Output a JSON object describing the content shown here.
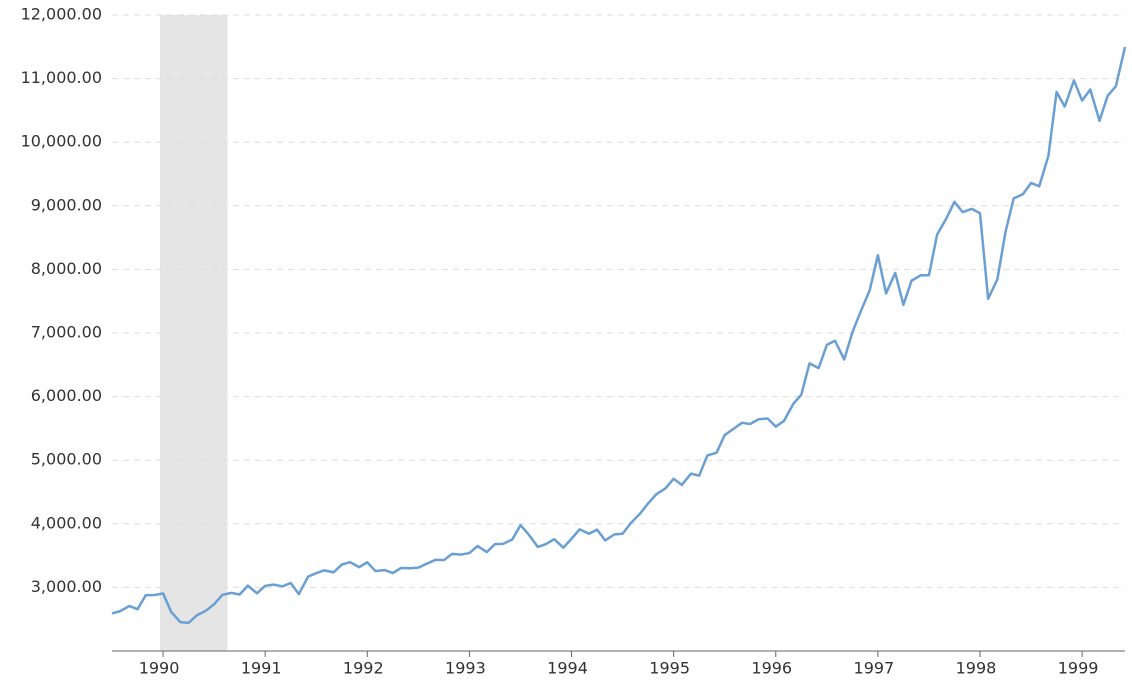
{
  "chart_data": {
    "type": "line",
    "x": [
      1989.5,
      1989.58,
      1989.67,
      1989.75,
      1989.83,
      1989.92,
      1990,
      1990.08,
      1990.17,
      1990.25,
      1990.33,
      1990.42,
      1990.5,
      1990.58,
      1990.67,
      1990.75,
      1990.83,
      1990.92,
      1991,
      1991.08,
      1991.17,
      1991.25,
      1991.33,
      1991.42,
      1991.5,
      1991.58,
      1991.67,
      1991.75,
      1991.83,
      1991.92,
      1992,
      1992.08,
      1992.17,
      1992.25,
      1992.33,
      1992.42,
      1992.5,
      1992.58,
      1992.67,
      1992.75,
      1992.83,
      1992.92,
      1993,
      1993.08,
      1993.17,
      1993.25,
      1993.33,
      1993.42,
      1993.5,
      1993.58,
      1993.67,
      1993.75,
      1993.83,
      1993.92,
      1994,
      1994.08,
      1994.17,
      1994.25,
      1994.33,
      1994.42,
      1994.5,
      1994.58,
      1994.67,
      1994.75,
      1994.83,
      1994.92,
      1995,
      1995.08,
      1995.17,
      1995.25,
      1995.33,
      1995.42,
      1995.5,
      1995.58,
      1995.67,
      1995.75,
      1995.83,
      1995.92,
      1996,
      1996.08,
      1996.17,
      1996.25,
      1996.33,
      1996.42,
      1996.5,
      1996.58,
      1996.67,
      1996.75,
      1996.83,
      1996.92,
      1997,
      1997.08,
      1997.17,
      1997.25,
      1997.33,
      1997.42,
      1997.5,
      1997.58,
      1997.67,
      1997.75,
      1997.83,
      1997.92,
      1998,
      1998.08,
      1998.17,
      1998.25,
      1998.33,
      1998.42,
      1998.5,
      1998.58,
      1998.67,
      1998.75,
      1998.83,
      1998.92,
      1999,
      1999.08,
      1999.17,
      1999.25,
      1999.33,
      1999.42
    ],
    "series": [
      {
        "color": "#6a9fd4",
        "values": [
          2590,
          2627,
          2707,
          2657,
          2877,
          2881,
          2905,
          2614,
          2453,
          2442,
          2560,
          2634,
          2736,
          2882,
          2914,
          2888,
          3028,
          2907,
          3025,
          3044,
          3017,
          3069,
          2895,
          3169,
          3224,
          3268,
          3236,
          3359,
          3397,
          3319,
          3394,
          3257,
          3272,
          3226,
          3305,
          3301,
          3310,
          3371,
          3435,
          3428,
          3527,
          3516,
          3540,
          3651,
          3555,
          3681,
          3684,
          3754,
          3978,
          3832,
          3636,
          3682,
          3758,
          3625,
          3765,
          3913,
          3843,
          3908,
          3739,
          3834,
          3844,
          4011,
          4158,
          4321,
          4465,
          4556,
          4709,
          4611,
          4789,
          4756,
          5075,
          5117,
          5395,
          5486,
          5588,
          5569,
          5643,
          5655,
          5529,
          5616,
          5882,
          6029,
          6522,
          6448,
          6813,
          6878,
          6584,
          7009,
          7331,
          7673,
          8223,
          7622,
          7945,
          7443,
          7823,
          7908,
          7907,
          8546,
          8800,
          9063,
          8900,
          8952,
          8883,
          7539,
          7843,
          8592,
          9117,
          9181,
          9359,
          9307,
          9786,
          10789,
          10560,
          10971,
          10655,
          10829,
          10337,
          10729,
          10878,
          11497
        ]
      }
    ],
    "xlim": [
      1989.5,
      1999.42
    ],
    "xticks": [
      1990,
      1991,
      1992,
      1993,
      1994,
      1995,
      1996,
      1997,
      1998,
      1999
    ],
    "ylim": [
      2000,
      12000
    ],
    "yticks": [
      {
        "value": 3000,
        "label": "3,000.00"
      },
      {
        "value": 4000,
        "label": "4,000.00"
      },
      {
        "value": 5000,
        "label": "5,000.00"
      },
      {
        "value": 6000,
        "label": "6,000.00"
      },
      {
        "value": 7000,
        "label": "7,000.00"
      },
      {
        "value": 8000,
        "label": "8,000.00"
      },
      {
        "value": 9000,
        "label": "9,000.00"
      },
      {
        "value": 10000,
        "label": "10,000.00"
      },
      {
        "value": 11000,
        "label": "11,000.00"
      },
      {
        "value": 12000,
        "label": "12,000.00"
      }
    ],
    "shaded_ranges": [
      [
        1989.97,
        1990.63
      ]
    ],
    "grid": true
  }
}
